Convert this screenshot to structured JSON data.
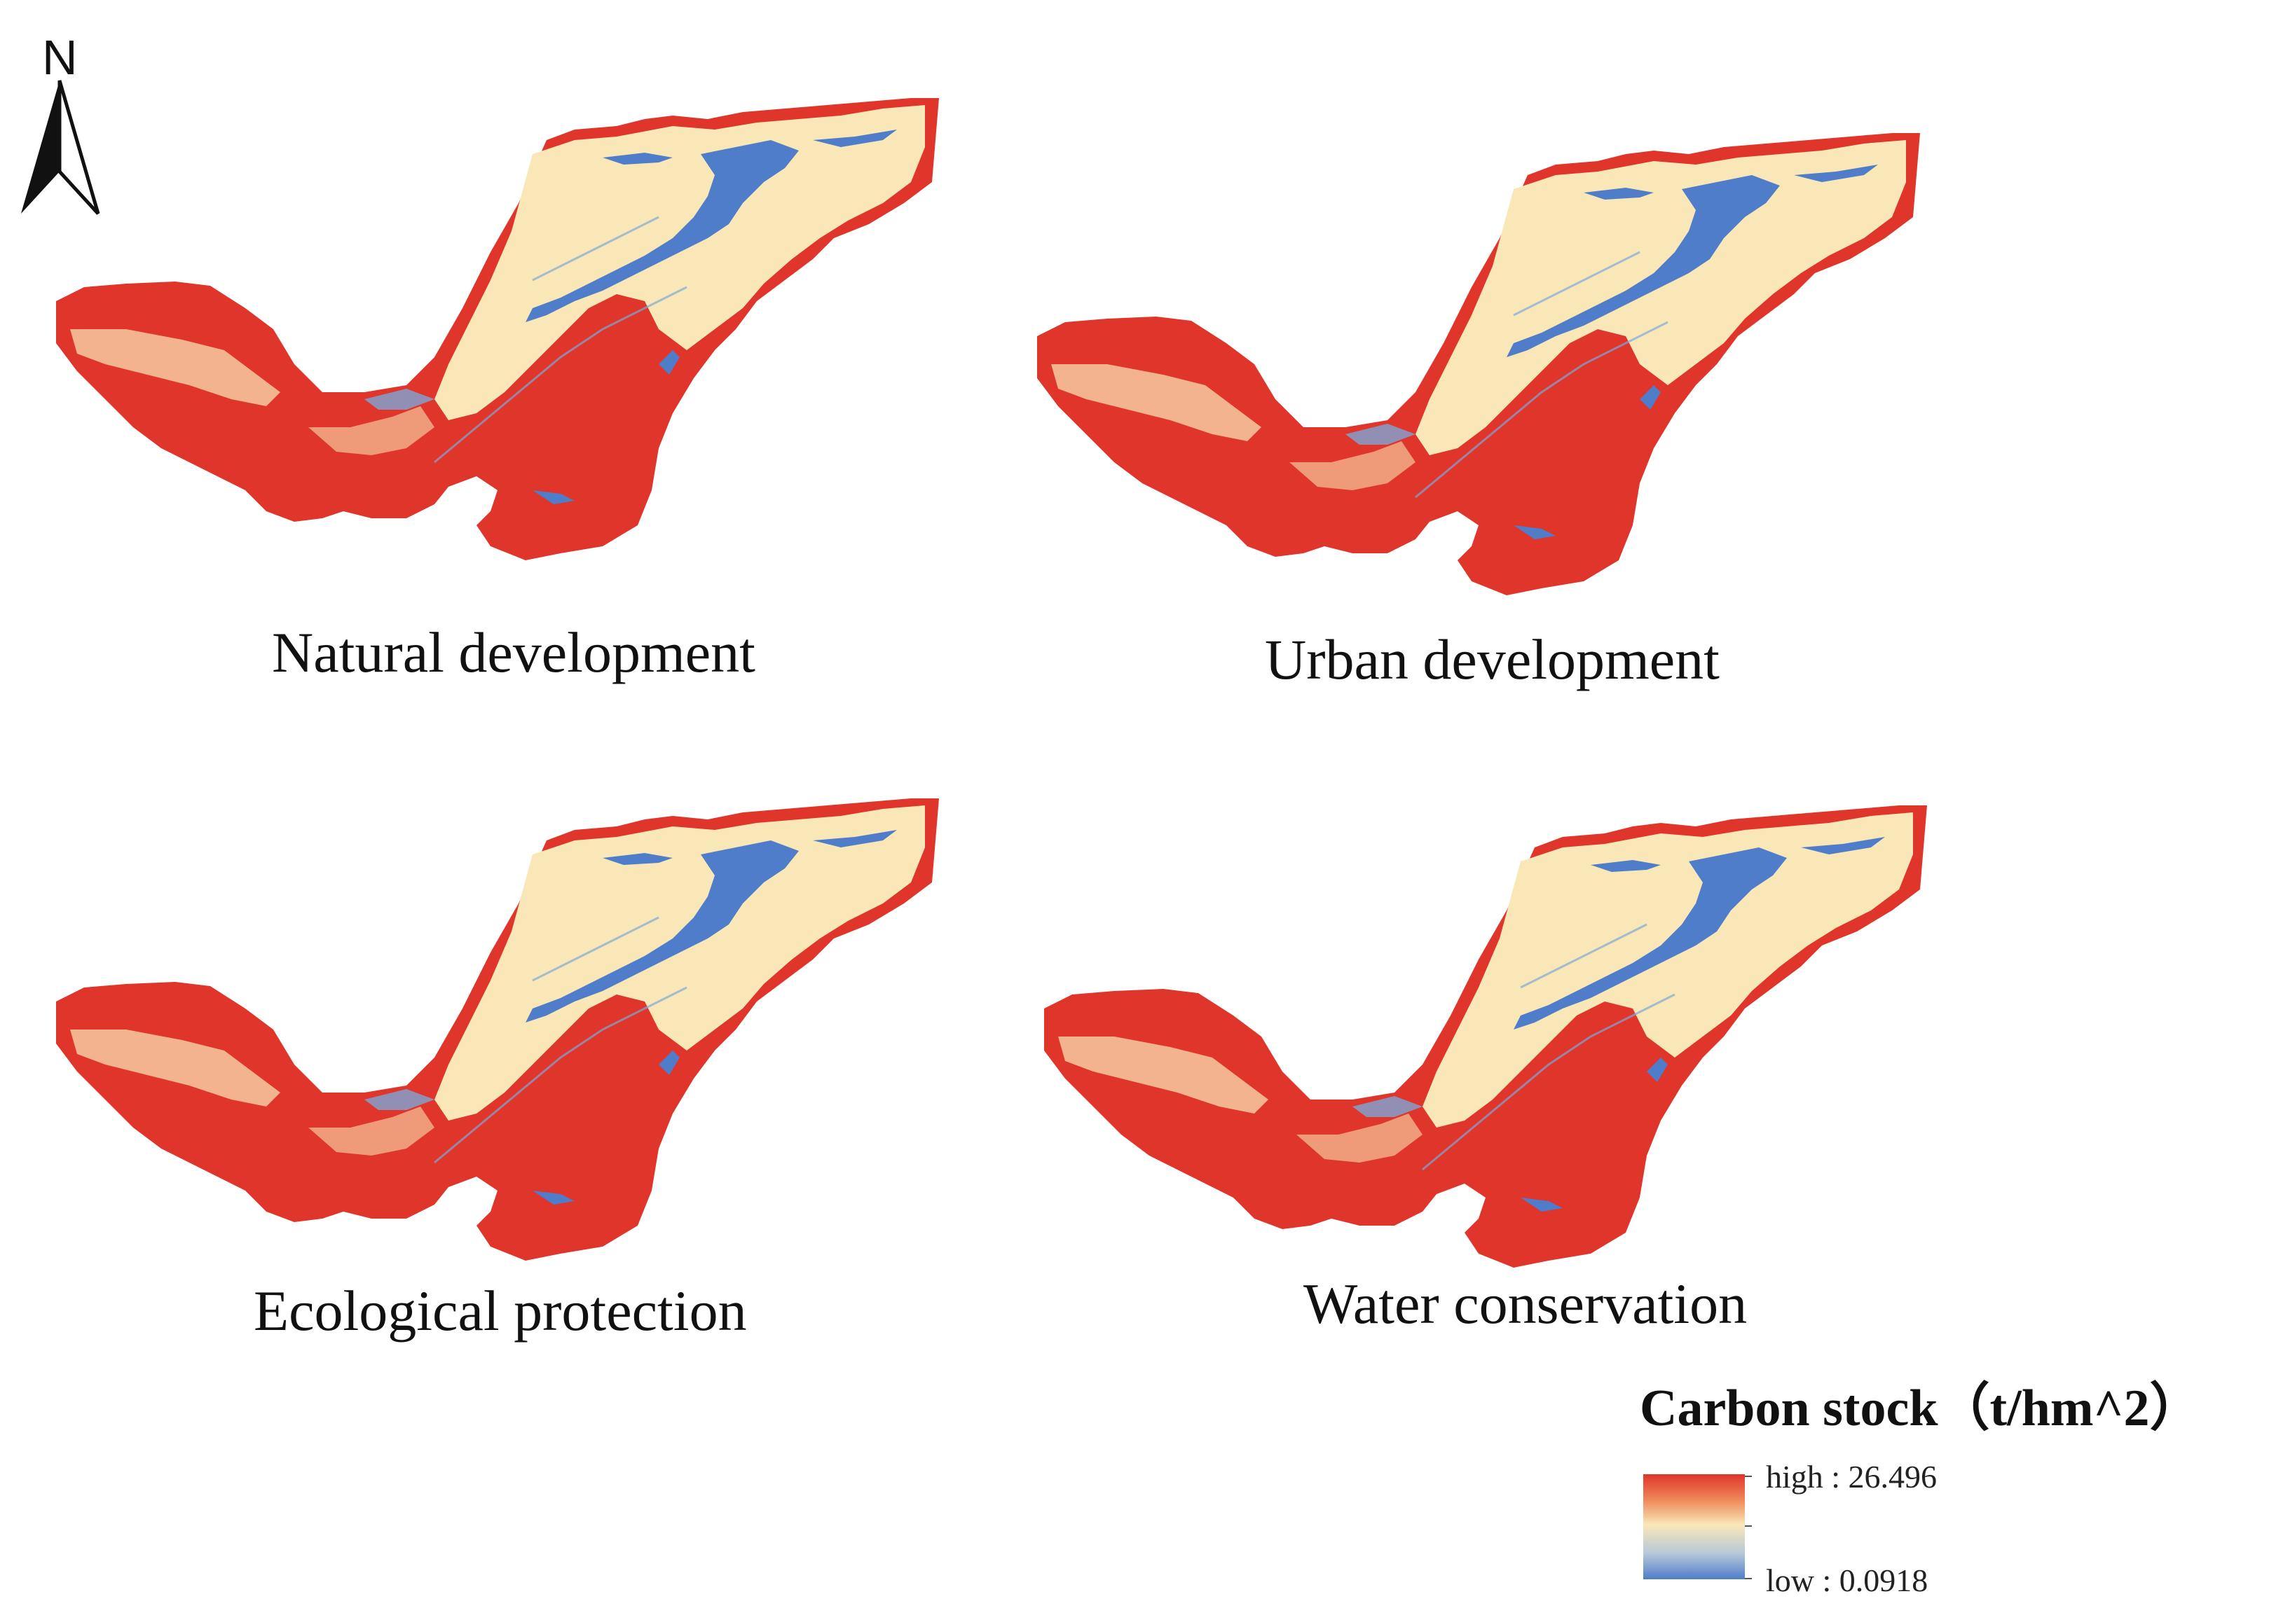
{
  "north_arrow": {
    "label": "N"
  },
  "panels": [
    {
      "id": "natural",
      "caption": "Natural development"
    },
    {
      "id": "urban",
      "caption": "Urban development"
    },
    {
      "id": "ecological",
      "caption": "Ecological protection"
    },
    {
      "id": "water",
      "caption": "Water conservation"
    }
  ],
  "legend": {
    "title": "Carbon stock（t/hm^2）",
    "high_label": "high : 26.496",
    "low_label": "low : 0.0918",
    "colors": {
      "high": "#e0352b",
      "mid": "#fae7b8",
      "low": "#4f7dc9"
    }
  }
}
